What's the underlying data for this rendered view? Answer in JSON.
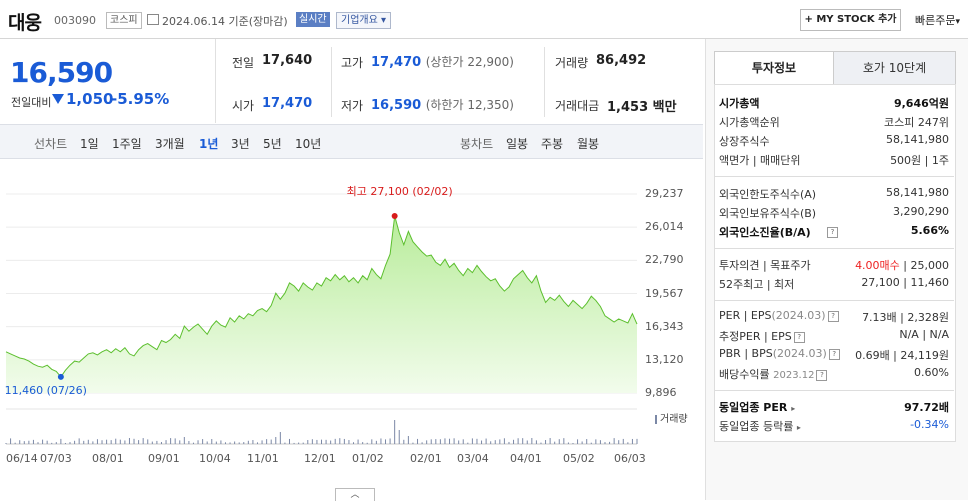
{
  "header": {
    "name": "대웅",
    "code": "003090",
    "market": "코스피",
    "date_text": "2024.06.14 기준(장마감)",
    "realtime": "실시간",
    "company_info": "기업개요",
    "my_stock": "+ MY STOCK 추가",
    "quick_order": "빠른주문"
  },
  "quote": {
    "price": "16,590",
    "change_label": "전일대비",
    "change": "1,050",
    "change_pct": "-5.95%",
    "prev_label": "전일",
    "prev": "17,640",
    "high_label": "고가",
    "high": "17,470",
    "high_sub": "(상한가 22,900)",
    "volume_label": "거래량",
    "volume": "86,492",
    "open_label": "시가",
    "open": "17,470",
    "low_label": "저가",
    "low": "16,590",
    "low_sub": "(하한가 12,350)",
    "amount_label": "거래대금",
    "amount": "1,453 백만"
  },
  "periods": {
    "line_label": "선차트",
    "items": [
      "1일",
      "1주일",
      "3개월",
      "1년",
      "3년",
      "5년",
      "10년"
    ],
    "selected": "1년",
    "candle_label": "봉차트",
    "candle_items": [
      "일봉",
      "주봉",
      "월봉"
    ]
  },
  "chart_data": {
    "type": "area",
    "y_ticks": [
      "29,237",
      "26,014",
      "22,790",
      "19,567",
      "16,343",
      "13,120",
      "9,896"
    ],
    "ylim": [
      9896,
      29237
    ],
    "x_ticks": [
      "06/14",
      "07/03",
      "08/01",
      "09/01",
      "10/04",
      "11/01",
      "12/01",
      "01/02",
      "02/01",
      "03/04",
      "04/01",
      "05/02",
      "06/03"
    ],
    "high_label": "최고 27,100 (02/02)",
    "low_label": "최저 11,460 (07/26)",
    "volume_label": "거래량",
    "values": [
      13900,
      13700,
      13500,
      13300,
      13200,
      13000,
      12700,
      12500,
      12400,
      12600,
      12200,
      12000,
      11460,
      12100,
      12600,
      13000,
      12900,
      13300,
      13700,
      13800,
      13600,
      13900,
      14100,
      13800,
      14200,
      13900,
      14300,
      13700,
      13500,
      14100,
      14500,
      14700,
      14400,
      14100,
      15000,
      14800,
      15100,
      15600,
      15200,
      16400,
      15900,
      16300,
      16600,
      16100,
      15600,
      16400,
      16900,
      16500,
      16300,
      17200,
      16800,
      17400,
      17100,
      17600,
      17400,
      17900,
      18100,
      17800,
      18400,
      19600,
      19000,
      19600,
      20600,
      20300,
      19800,
      20600,
      20200,
      19900,
      20600,
      20300,
      21100,
      20800,
      21400,
      20900,
      21300,
      20700,
      21100,
      20600,
      21300,
      20900,
      22000,
      21400,
      21000,
      22300,
      23400,
      27100,
      25500,
      24300,
      25600,
      24600,
      24100,
      23600,
      23200,
      23300,
      22600,
      22300,
      22900,
      22100,
      22500,
      21800,
      21300,
      22000,
      21600,
      22300,
      21700,
      21200,
      20800,
      21000,
      20300,
      19800,
      20200,
      21000,
      21400,
      21800,
      21100,
      20600,
      21300,
      19800,
      18700,
      19200,
      18900,
      19400,
      18800,
      18300,
      18900,
      18500,
      18100,
      18600,
      19300,
      18900,
      18300,
      17400,
      17100,
      16800,
      17100,
      16900,
      16700,
      17600,
      16590
    ]
  },
  "side": {
    "tab_active": "투자정보",
    "tab_idle": "호가 10단계",
    "rows1": [
      {
        "label": "시가총액",
        "value": "9,646억원",
        "bold": true
      },
      {
        "label": "시가총액순위",
        "value": "코스피 247위"
      },
      {
        "label": "상장주식수",
        "value": "58,141,980"
      },
      {
        "label": "액면가 | 매매단위",
        "value": "500원 | 1주"
      }
    ],
    "rows2": [
      {
        "label": "외국인한도주식수(A)",
        "value": "58,141,980"
      },
      {
        "label": "외국인보유주식수(B)",
        "value": "3,290,290"
      },
      {
        "label": "외국인소진율(B/A)",
        "value": "5.66%",
        "bold": true
      }
    ],
    "opinion_label": "투자의견 | 목표주가",
    "opinion_rating": "4.00매수",
    "opinion_target": "25,000",
    "w52_label": "52주최고 | 최저",
    "w52_value": "27,100 | 11,460",
    "per_label": "PER | EPS",
    "per_period": "(2024.03)",
    "per_value": "7.13배 | 2,328원",
    "est_label": "추정PER | EPS",
    "est_value": "N/A | N/A",
    "pbr_label": "PBR | BPS",
    "pbr_period": "(2024.03)",
    "pbr_value": "0.69배 | 24,119원",
    "div_label": "배당수익률",
    "div_period": "2023.12",
    "div_value": "0.60%",
    "ind_per_label": "동일업종 PER",
    "ind_per_value": "97.72배",
    "ind_rate_label": "동일업종 등락률",
    "ind_rate_value": "-0.34%"
  }
}
